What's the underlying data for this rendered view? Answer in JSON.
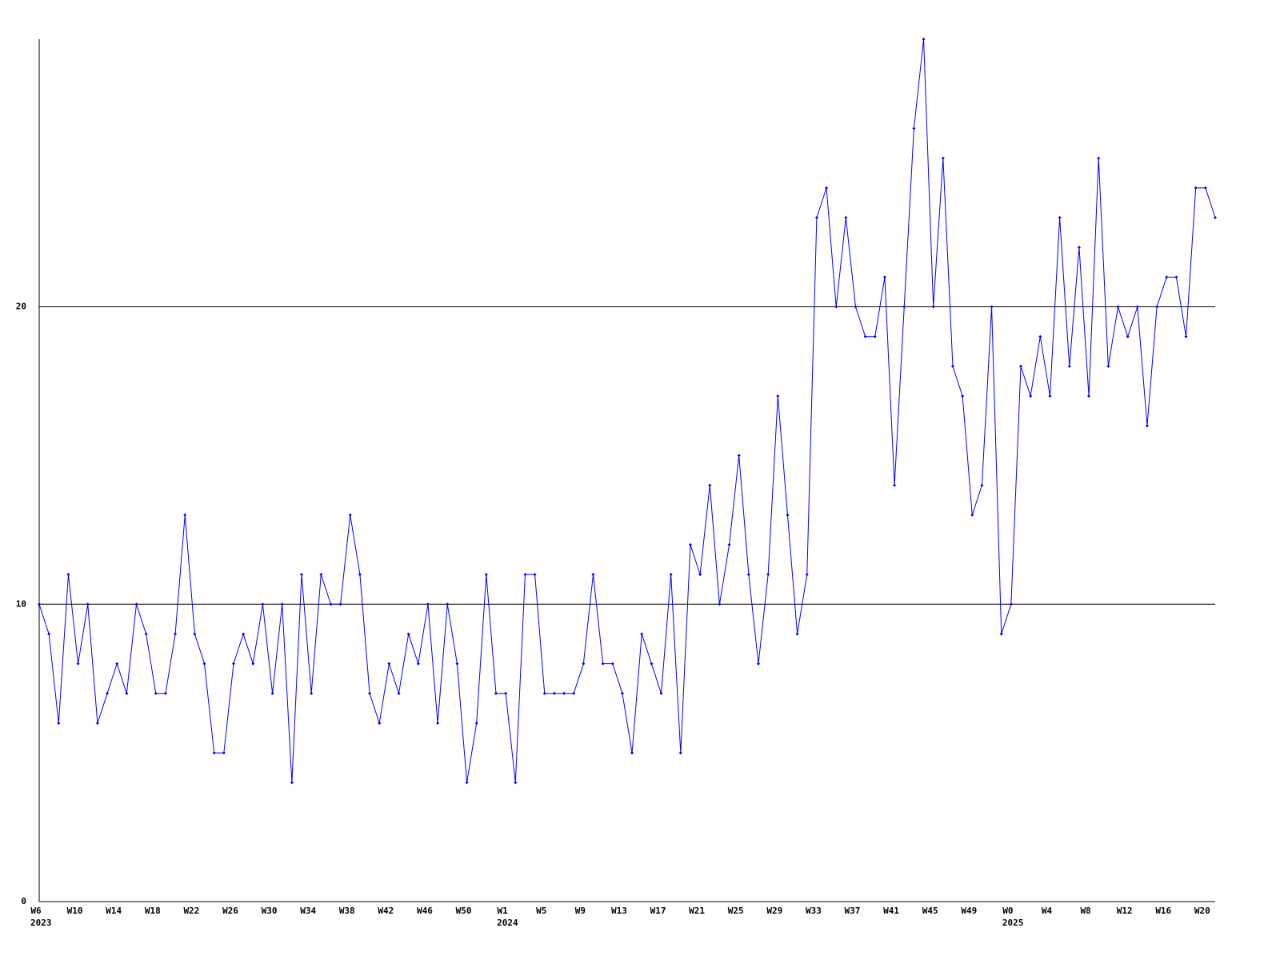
{
  "chart_data": {
    "type": "line",
    "categories": [
      "W6",
      null,
      null,
      null,
      "W10",
      null,
      null,
      null,
      "W14",
      null,
      null,
      null,
      "W18",
      null,
      null,
      null,
      "W22",
      null,
      null,
      null,
      "W26",
      null,
      null,
      null,
      "W30",
      null,
      null,
      null,
      "W34",
      null,
      null,
      null,
      "W38",
      null,
      null,
      null,
      "W42",
      null,
      null,
      null,
      "W46",
      null,
      null,
      null,
      "W50",
      null,
      null,
      null,
      "W1",
      null,
      null,
      null,
      "W5",
      null,
      null,
      null,
      "W9",
      null,
      null,
      null,
      "W13",
      null,
      null,
      null,
      "W17",
      null,
      null,
      null,
      "W21",
      null,
      null,
      null,
      "W25",
      null,
      null,
      null,
      "W29",
      null,
      null,
      null,
      "W33",
      null,
      null,
      null,
      "W37",
      null,
      null,
      null,
      "W41",
      null,
      null,
      null,
      "W45",
      null,
      null,
      null,
      "W49",
      null,
      null,
      null,
      "W0",
      null,
      null,
      null,
      "W4",
      null,
      null,
      null,
      "W8",
      null,
      null,
      null,
      "W12",
      null,
      null,
      null,
      "W16",
      null,
      null,
      null,
      "W20",
      null
    ],
    "year_labels": [
      "2023",
      null,
      null,
      null,
      null,
      null,
      null,
      null,
      null,
      null,
      null,
      null,
      null,
      null,
      null,
      null,
      null,
      null,
      null,
      null,
      null,
      null,
      null,
      null,
      null,
      null,
      null,
      null,
      null,
      null,
      null,
      null,
      null,
      null,
      null,
      null,
      null,
      null,
      null,
      null,
      null,
      null,
      null,
      null,
      null,
      null,
      null,
      null,
      "2024",
      null,
      null,
      null,
      null,
      null,
      null,
      null,
      null,
      null,
      null,
      null,
      null,
      null,
      null,
      null,
      null,
      null,
      null,
      null,
      null,
      null,
      null,
      null,
      null,
      null,
      null,
      null,
      null,
      null,
      null,
      null,
      null,
      null,
      null,
      null,
      null,
      null,
      null,
      null,
      null,
      null,
      null,
      null,
      null,
      null,
      null,
      null,
      null,
      null,
      null,
      null,
      "2025",
      null,
      null,
      null,
      null,
      null,
      null,
      null,
      null,
      null,
      null,
      null,
      null,
      null,
      null,
      null,
      null,
      null,
      null,
      null,
      null,
      null
    ],
    "values": [
      10,
      9,
      6,
      11,
      8,
      10,
      6,
      7,
      8,
      7,
      10,
      9,
      7,
      7,
      9,
      13,
      9,
      8,
      5,
      5,
      8,
      9,
      8,
      10,
      7,
      10,
      4,
      11,
      7,
      11,
      10,
      10,
      13,
      11,
      7,
      6,
      8,
      7,
      9,
      8,
      10,
      6,
      10,
      8,
      4,
      6,
      11,
      7,
      7,
      4,
      11,
      11,
      7,
      7,
      7,
      7,
      8,
      11,
      8,
      8,
      7,
      5,
      9,
      8,
      7,
      11,
      5,
      12,
      11,
      14,
      10,
      12,
      15,
      11,
      8,
      11,
      17,
      13,
      9,
      11,
      23,
      24,
      20,
      23,
      20,
      19,
      19,
      21,
      14,
      20,
      26,
      29,
      20,
      25,
      18,
      17,
      13,
      14,
      20,
      9,
      10,
      18,
      17,
      19,
      17,
      23,
      18,
      22,
      17,
      25,
      18,
      20,
      19,
      20,
      16,
      20,
      21,
      21,
      19,
      24,
      24,
      23
    ],
    "color": "#0000ff",
    "ylim": [
      0,
      29
    ],
    "yticks": [
      0,
      10,
      20
    ],
    "grid": true
  }
}
